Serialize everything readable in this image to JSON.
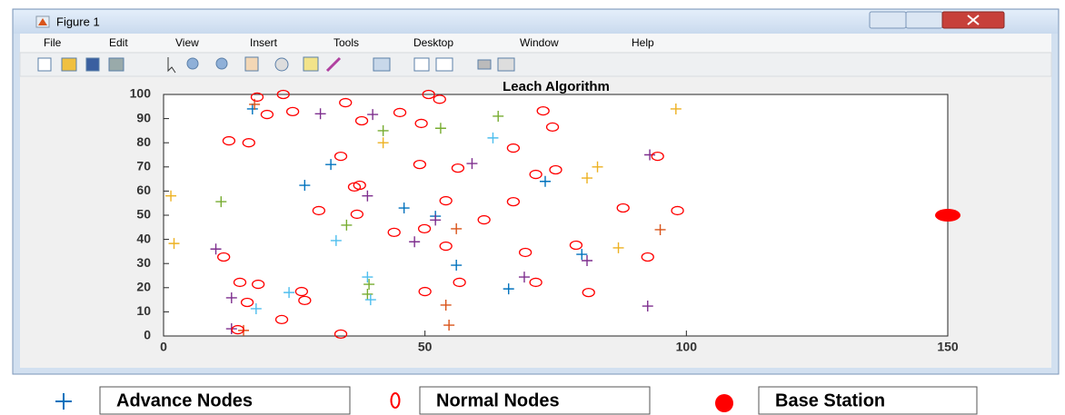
{
  "window": {
    "title": "Figure 1",
    "menu": [
      "File",
      "Edit",
      "View",
      "Insert",
      "Tools",
      "Desktop",
      "Window",
      "Help"
    ]
  },
  "chart_data": {
    "type": "scatter",
    "title": "Leach Algorithm",
    "xlim": [
      0,
      150
    ],
    "ylim": [
      0,
      100
    ],
    "xticks": [
      0,
      50,
      100,
      150
    ],
    "yticks": [
      0,
      10,
      20,
      30,
      40,
      50,
      60,
      70,
      80,
      90,
      100
    ],
    "grid": false,
    "series": [
      {
        "name": "Advance Nodes",
        "marker": "plus",
        "color": "#0072bd",
        "colors": [
          "#0072bd",
          "#7e2f8e",
          "#7e2f8e",
          "#77ac30",
          "#77ac30",
          "#77ac30",
          "#edb120",
          "#edb120",
          "#4dbeee",
          "#0072bd",
          "#7e2f8e",
          "#edb120",
          "#7e2f8e",
          "#0072bd",
          "#0072bd",
          "#edb120",
          "#7e2f8e",
          "#edb120",
          "#77ac30",
          "#0072bd",
          "#0072bd",
          "#7e2f8e",
          "#77ac30",
          "#d95319",
          "#d95319",
          "#edb120",
          "#4dbeee",
          "#7e2f8e",
          "#edb120",
          "#7e2f8e",
          "#0072bd",
          "#7e2f8e",
          "#0072bd",
          "#4dbeee",
          "#7e2f8e",
          "#77ac30",
          "#77ac30",
          "#4dbeee",
          "#4dbeee",
          "#0072bd",
          "#7e2f8e",
          "#4dbeee",
          "#d95319",
          "#d95319",
          "#7e2f8e",
          "#d95319",
          "#7e2f8e",
          "#d95319"
        ],
        "x": [
          17,
          30,
          40,
          42,
          53,
          64,
          98,
          42,
          63,
          32,
          59,
          83,
          93,
          27,
          73,
          81,
          39,
          1.4,
          11,
          46,
          52,
          52,
          35,
          56,
          95,
          2,
          33,
          48,
          87,
          10,
          80,
          81,
          56,
          39,
          69,
          39.3,
          39,
          39.6,
          24,
          66,
          13,
          17.7,
          54,
          54.6,
          13,
          15.3,
          92.6,
          17.4
        ],
        "y": [
          94,
          92,
          91.7,
          85,
          86,
          91,
          94,
          80,
          82,
          71,
          71.4,
          70,
          75,
          62.4,
          64,
          65.4,
          58,
          58,
          55.6,
          53,
          49.6,
          48,
          45.9,
          44.4,
          44,
          38.3,
          39.5,
          39,
          36.5,
          36,
          33.8,
          31.2,
          29.3,
          24.4,
          24.4,
          21.4,
          17.3,
          15,
          18,
          19.5,
          15.8,
          11.3,
          12.8,
          4.5,
          3,
          2.3,
          12.4,
          95.9
        ]
      },
      {
        "name": "Normal Nodes",
        "marker": "circle",
        "color": "#ff0000",
        "x": [
          17.9,
          22.9,
          50.7,
          52.8,
          34.8,
          19.8,
          24.7,
          45.2,
          37.9,
          49.3,
          72.6,
          74.4,
          12.5,
          16.3,
          66.9,
          33.9,
          94.5,
          49,
          56.3,
          75,
          71.2,
          37.5,
          36.5,
          54,
          66.9,
          29.7,
          37,
          98.3,
          87.9,
          61.3,
          49.9,
          44.1,
          54,
          78.9,
          69.2,
          11.5,
          92.6,
          14.6,
          18.1,
          56.6,
          71.2,
          26.4,
          50,
          81.3,
          16,
          27,
          22.6,
          14.2,
          33.9
        ],
        "y": [
          98.9,
          100,
          100,
          98,
          96.6,
          91.7,
          92.9,
          92.5,
          89.1,
          88,
          93.2,
          86.5,
          80.8,
          80,
          77.8,
          74.4,
          74.4,
          71,
          69.5,
          68.8,
          66.9,
          62.4,
          61.7,
          56,
          55.6,
          51.9,
          50.4,
          51.9,
          53,
          48.1,
          44.4,
          42.9,
          37.2,
          37.6,
          34.6,
          32.7,
          32.7,
          22.2,
          21.4,
          22.2,
          22.2,
          18.4,
          18.4,
          18,
          13.9,
          14.7,
          6.8,
          2.6,
          0.8
        ]
      },
      {
        "name": "Base Station",
        "marker": "dot",
        "color": "#ff0000",
        "x": [
          150
        ],
        "y": [
          50
        ]
      }
    ]
  }
}
